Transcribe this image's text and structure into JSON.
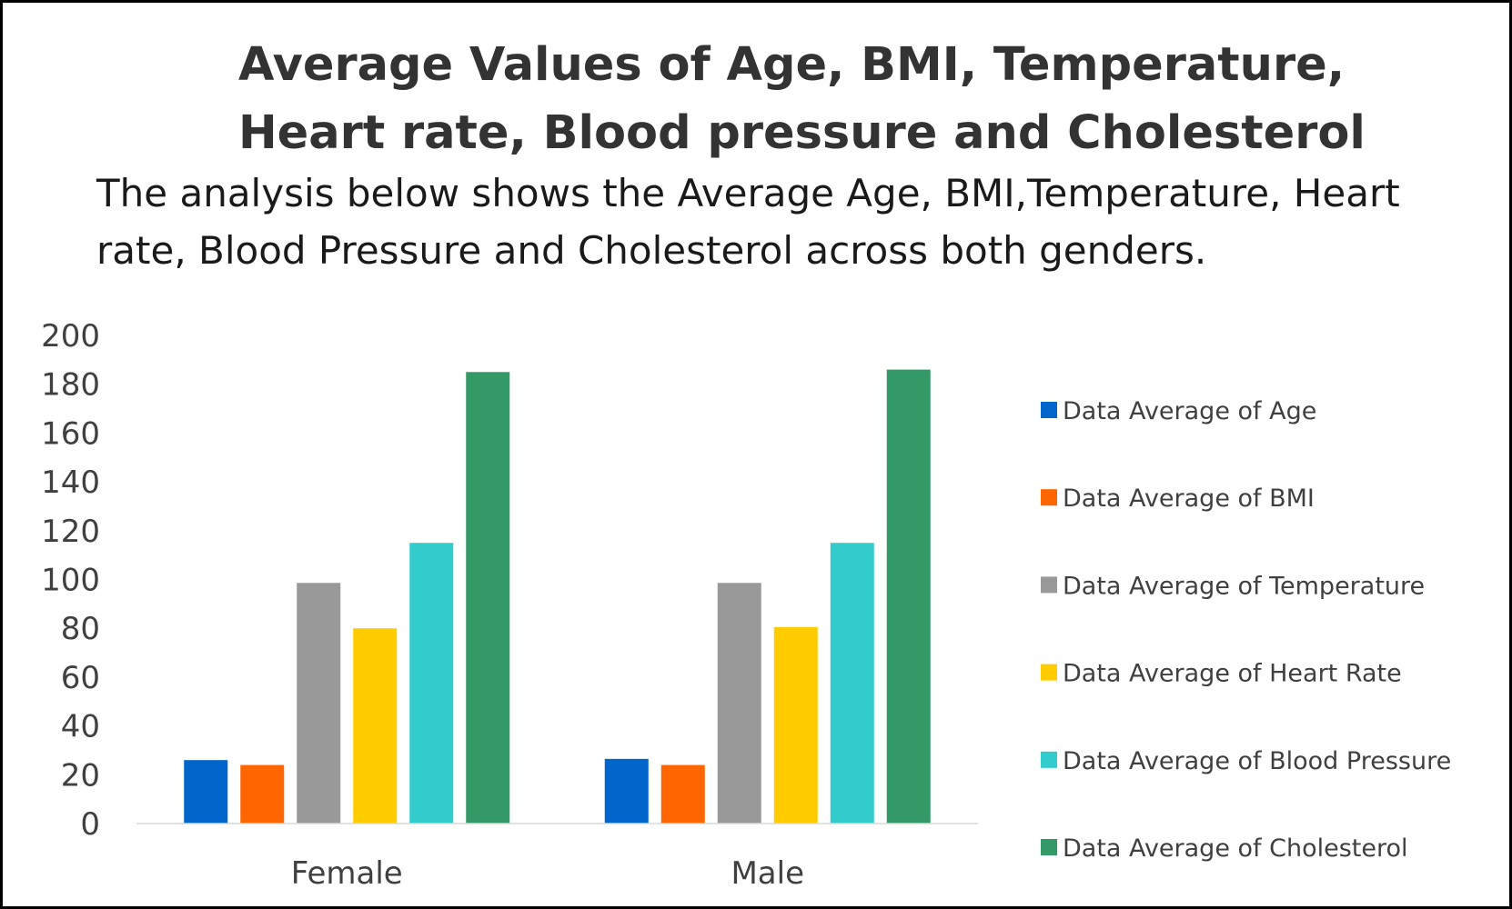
{
  "title": "Average Values of Age, BMI, Temperature, Heart rate, Blood pressure and Cholesterol",
  "subtitle": "The analysis below shows the Average Age, BMI,Temperature, Heart rate, Blood Pressure and Cholesterol across both genders.",
  "chart_data": {
    "type": "bar",
    "title": "",
    "xlabel": "",
    "ylabel": "",
    "categories": [
      "Female",
      "Male"
    ],
    "ylim": [
      0,
      200
    ],
    "yticks": [
      0,
      20,
      40,
      60,
      80,
      100,
      120,
      140,
      160,
      180,
      200
    ],
    "grid": false,
    "legend_position": "right",
    "series": [
      {
        "name": "Data Average of Age",
        "color": "#0066CC",
        "values": [
          26,
          26.5
        ]
      },
      {
        "name": "Data Average of BMI",
        "color": "#FF6600",
        "values": [
          24,
          24
        ]
      },
      {
        "name": "Data Average of Temperature",
        "color": "#999999",
        "values": [
          98.6,
          98.6
        ]
      },
      {
        "name": "Data Average of Heart Rate",
        "color": "#FFCC00",
        "values": [
          80,
          80.5
        ]
      },
      {
        "name": "Data Average of Blood Pressure",
        "color": "#33CCCC",
        "values": [
          115,
          115
        ]
      },
      {
        "name": "Data Average of Cholesterol",
        "color": "#339966",
        "values": [
          185,
          186
        ]
      }
    ]
  }
}
